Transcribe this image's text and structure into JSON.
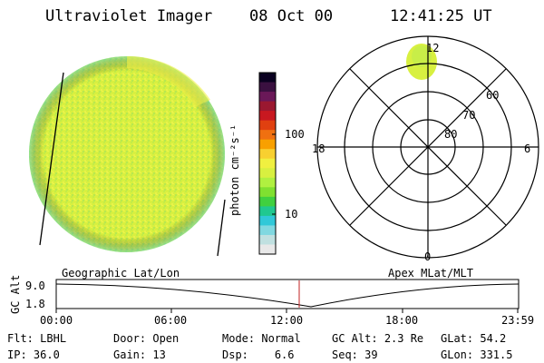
{
  "header": {
    "title": "Ultraviolet Imager",
    "date": "08 Oct 00",
    "time": "12:41:25 UT"
  },
  "colorbar": {
    "unit_label": "photon cm⁻²s⁻¹",
    "ticks": [
      "100",
      "10"
    ],
    "colors": [
      "#0a0020",
      "#3a1040",
      "#6a1858",
      "#9a1830",
      "#c81820",
      "#e04010",
      "#f07010",
      "#f8a000",
      "#f8d030",
      "#f0f040",
      "#d8f040",
      "#b0f040",
      "#80e030",
      "#40d040",
      "#20c890",
      "#30c8d8",
      "#80d8e0",
      "#c0e0e0",
      "#e8e8e8"
    ]
  },
  "polar_plot": {
    "hour_labels": {
      "top": "12",
      "left": "18",
      "right": "6",
      "bottom": "0"
    },
    "lat_labels": [
      "60",
      "70",
      "80"
    ]
  },
  "timeline": {
    "y_axis_label": "GC Alt",
    "y_ticks": [
      "9.0",
      "1.8"
    ],
    "left_caption": "Geographic Lat/Lon",
    "right_caption": "Apex MLat/MLT",
    "time_ticks": [
      "00:00",
      "06:00",
      "12:00",
      "18:00",
      "23:59"
    ]
  },
  "info": {
    "row1": [
      {
        "key": "Flt:",
        "value": "LBHL"
      },
      {
        "key": "Door:",
        "value": "Open"
      },
      {
        "key": "Mode:",
        "value": "Normal"
      },
      {
        "key": "GC Alt:",
        "value": "2.3 Re"
      },
      {
        "key": "GLat:",
        "value": "54.2"
      }
    ],
    "row2": [
      {
        "key": "IP:",
        "value": "36.0"
      },
      {
        "key": "Gain:",
        "value": "13"
      },
      {
        "key": "Dsp:",
        "value": "6.6"
      },
      {
        "key": "Seq:",
        "value": "39"
      },
      {
        "key": "GLon:",
        "value": "331.5"
      }
    ]
  }
}
